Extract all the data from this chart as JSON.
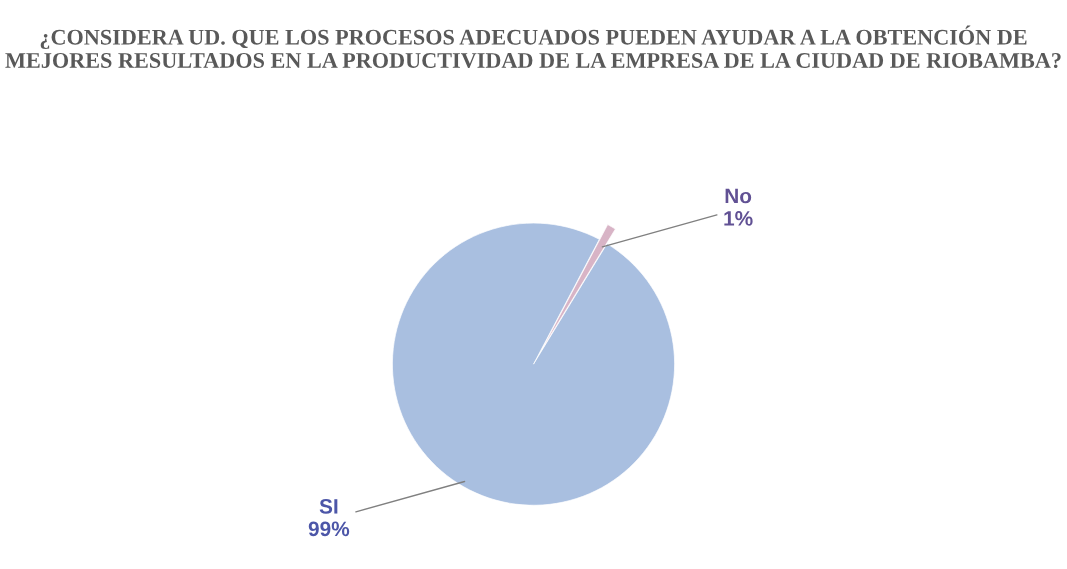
{
  "chart_data": {
    "type": "pie",
    "title": "¿CONSIDERA UD. QUE LOS PROCESOS ADECUADOS PUEDEN AYUDAR A LA OBTENCIÓN DE MEJORES RESULTADOS EN LA PRODUCTIVIDAD DE LA EMPRESA DE LA CIUDAD DE RIOBAMBA?",
    "categories": [
      "SI",
      "No"
    ],
    "values": [
      99,
      1
    ],
    "value_labels": [
      "99%",
      "1%"
    ],
    "colors": [
      "#a9bfe0",
      "#d8b4c6"
    ],
    "legend": false
  }
}
